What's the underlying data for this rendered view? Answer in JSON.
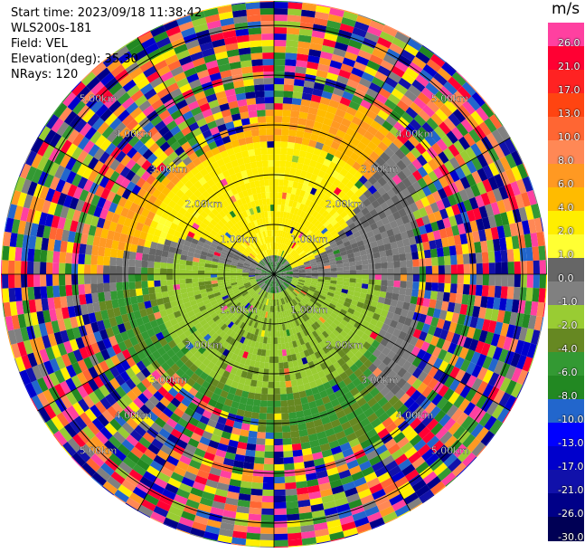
{
  "header": {
    "start_time": "Start time: 2023/09/18 11:38:42",
    "instrument": "WLS200s-181",
    "field": "Field: VEL",
    "elevation": "Elevation(deg): 35.30",
    "nrays": "NRays: 120"
  },
  "colorbar": {
    "unit": "m/s",
    "labels": [
      "26.0",
      "21.0",
      "17.0",
      "13.0",
      "10.0",
      "8.0",
      "6.0",
      "4.0",
      "2.0",
      "1.0",
      "0.0",
      "-1.0",
      "-2.0",
      "-4.0",
      "-6.0",
      "-8.0",
      "-10.0",
      "-13.0",
      "-17.0",
      "-21.0",
      "-26.0",
      "-30.0"
    ],
    "colors": [
      "#ff40a0",
      "#ff0033",
      "#ff2222",
      "#ff4411",
      "#ff6633",
      "#ff8855",
      "#ff9922",
      "#ffbb00",
      "#ffee00",
      "#ffff33",
      "#666666",
      "#808080",
      "#99cc33",
      "#668822",
      "#339933",
      "#228822",
      "#2266cc",
      "#0000ff",
      "#0000cc",
      "#1111aa",
      "#000088",
      "#000055"
    ]
  },
  "chart_data": {
    "type": "heatmap",
    "projection": "polar PPI",
    "field": "VEL",
    "units": "m/s",
    "nrays": 120,
    "range_ring_labels": [
      "1.00km",
      "2.00km",
      "3.00km",
      "4.00km",
      "5.00km"
    ],
    "ring_ranges_km": [
      1,
      2,
      3,
      4,
      5
    ],
    "value_range": [
      -30,
      30
    ],
    "pattern": [
      {
        "range_km": [
          0,
          0.4
        ],
        "value": 0
      },
      {
        "range_km": [
          0.4,
          1.2
        ],
        "sector": "north",
        "value": 2
      },
      {
        "range_km": [
          0.4,
          1.2
        ],
        "sector": "south",
        "value": -2
      },
      {
        "range_km": [
          1.2,
          3.5
        ],
        "sector": "north",
        "value": 3
      },
      {
        "range_km": [
          1.2,
          3.5
        ],
        "sector": "south",
        "value": -4
      },
      {
        "range_km": [
          3.5,
          5.5
        ],
        "value": "noise"
      }
    ]
  }
}
